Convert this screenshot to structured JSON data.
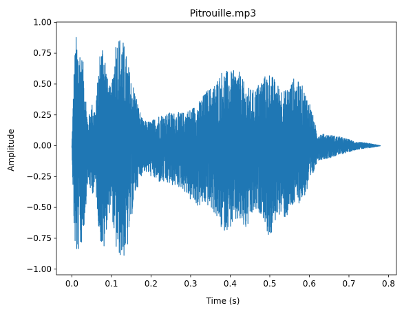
{
  "chart_data": {
    "type": "line",
    "title": "Pitrouille.mp3",
    "xlabel": "Time (s)",
    "ylabel": "Amplitude",
    "xlim": [
      -0.039,
      0.82
    ],
    "ylim": [
      -1.046,
      1.002
    ],
    "xticks": [
      0.0,
      0.1,
      0.2,
      0.3,
      0.4,
      0.5,
      0.6,
      0.7,
      0.8
    ],
    "xtick_labels": [
      "0.0",
      "0.1",
      "0.2",
      "0.3",
      "0.4",
      "0.5",
      "0.6",
      "0.7",
      "0.8"
    ],
    "yticks": [
      1.0,
      0.75,
      0.5,
      0.25,
      0.0,
      -0.25,
      -0.5,
      -0.75,
      -1.0
    ],
    "ytick_labels": [
      "1.00",
      "0.75",
      "0.50",
      "0.25",
      "0.00",
      "−0.25",
      "−0.50",
      "−0.75",
      "−1.00"
    ],
    "grid": false,
    "series": [
      {
        "color": "#1f77b4",
        "envelope": {
          "t": [
            0.0,
            0.005,
            0.01,
            0.015,
            0.02,
            0.03,
            0.04,
            0.05,
            0.06,
            0.07,
            0.08,
            0.09,
            0.1,
            0.11,
            0.12,
            0.13,
            0.14,
            0.15,
            0.16,
            0.17,
            0.18,
            0.2,
            0.22,
            0.25,
            0.28,
            0.3,
            0.32,
            0.34,
            0.36,
            0.38,
            0.4,
            0.42,
            0.44,
            0.46,
            0.48,
            0.5,
            0.52,
            0.54,
            0.56,
            0.58,
            0.6,
            0.62,
            0.65,
            0.68,
            0.7,
            0.72,
            0.75,
            0.78
          ],
          "max": [
            0.0,
            0.6,
            0.9,
            0.85,
            0.82,
            0.65,
            0.2,
            0.35,
            0.3,
            0.75,
            0.9,
            0.55,
            0.45,
            0.88,
            0.9,
            0.85,
            0.7,
            0.55,
            0.45,
            0.3,
            0.2,
            0.2,
            0.25,
            0.27,
            0.27,
            0.3,
            0.35,
            0.45,
            0.5,
            0.62,
            0.6,
            0.62,
            0.48,
            0.45,
            0.55,
            0.6,
            0.5,
            0.45,
            0.55,
            0.5,
            0.37,
            0.1,
            0.09,
            0.07,
            0.05,
            0.03,
            0.02,
            0.0
          ],
          "min": [
            0.0,
            -0.65,
            -0.95,
            -0.85,
            -0.88,
            -0.7,
            -0.3,
            -0.4,
            -0.35,
            -0.75,
            -0.9,
            -0.6,
            -0.5,
            -0.85,
            -0.9,
            -0.92,
            -0.85,
            -0.6,
            -0.4,
            -0.3,
            -0.2,
            -0.25,
            -0.3,
            -0.32,
            -0.35,
            -0.45,
            -0.5,
            -0.48,
            -0.55,
            -0.7,
            -0.67,
            -0.62,
            -0.7,
            -0.55,
            -0.55,
            -0.78,
            -0.55,
            -0.6,
            -0.5,
            -0.45,
            -0.35,
            -0.12,
            -0.1,
            -0.07,
            -0.05,
            -0.03,
            -0.02,
            0.0
          ]
        }
      }
    ]
  }
}
